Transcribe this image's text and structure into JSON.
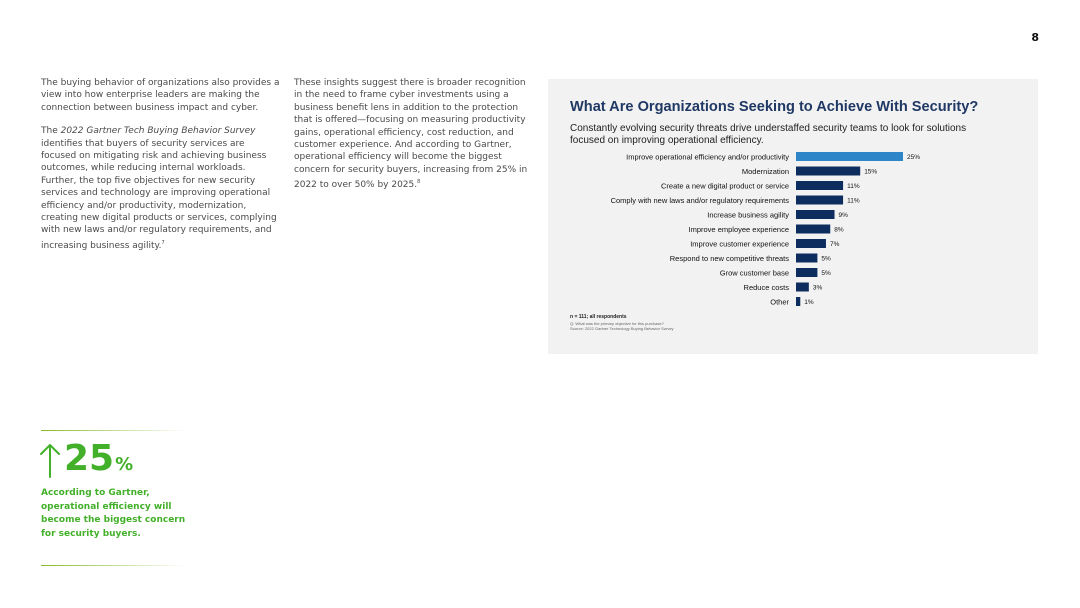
{
  "page_number": "8",
  "left_column": {
    "paragraph1": "The buying behavior of organizations also provides a view into how enterprise leaders are making the connection between business impact and cyber.",
    "paragraph2_prefix": "The ",
    "paragraph2_italic": "2022 Gartner Tech Buying Behavior Survey",
    "paragraph2_body": " identifies that buyers of security services are focused on mitigating risk and achieving business outcomes, while reducing internal workloads. Further, the top five objectives for new security services and technology are improving operational efficiency and/or productivity, modernization, creating new digital products or services, complying with new laws and/or regulatory requirements, and increasing business agility.",
    "paragraph2_footnote": "7"
  },
  "middle_column": {
    "paragraph1": "These insights suggest there is broader recognition in the need to frame cyber investments using a business benefit lens in addition to the protection that is offered—focusing on measuring productivity gains, operational efficiency, cost reduction, and customer experience. And according to Gartner, operational efficiency will become the biggest concern for security buyers, increasing from 25% in 2022 to over 50% by 2025.",
    "paragraph1_footnote": "8"
  },
  "stat_callout": {
    "arrow_icon": "up-arrow-icon",
    "value": "25",
    "unit": "%",
    "caption": "According to Gartner, operational efficiency will become the biggest concern for security buyers.",
    "accent_color": "#43b02a"
  },
  "chart_data": {
    "type": "bar",
    "orientation": "horizontal",
    "title": "What Are Organizations Seeking to Achieve With Security?",
    "subtitle": "Constantly evolving security threats drive understaffed security teams to look for solutions focused on improving operational efficiency.",
    "categories": [
      "Improve operational efficiency and/or productivity",
      "Modernization",
      "Create a new digital product or service",
      "Comply with new laws and/or regulatory requirements",
      "Increase business agility",
      "Improve employee experience",
      "Improve customer experience",
      "Respond to new competitive threats",
      "Grow customer base",
      "Reduce costs",
      "Other"
    ],
    "values": [
      25,
      15,
      11,
      11,
      9,
      8,
      7,
      5,
      5,
      3,
      1
    ],
    "value_labels": [
      "25%",
      "15%",
      "11%",
      "11%",
      "9%",
      "8%",
      "7%",
      "5%",
      "5%",
      "3%",
      "1%"
    ],
    "highlight_index": 0,
    "highlight_color": "#2e86c8",
    "bar_color": "#0d2d5e",
    "xlim": [
      0,
      25
    ],
    "grid": false,
    "legend": "none",
    "footnote_n": "n = 111; all respondents",
    "footnote_question": "Q: What was the primary objective for this purchase?",
    "footnote_source": "Source: 2022 Gartner Technology Buying Behavior Survey"
  }
}
